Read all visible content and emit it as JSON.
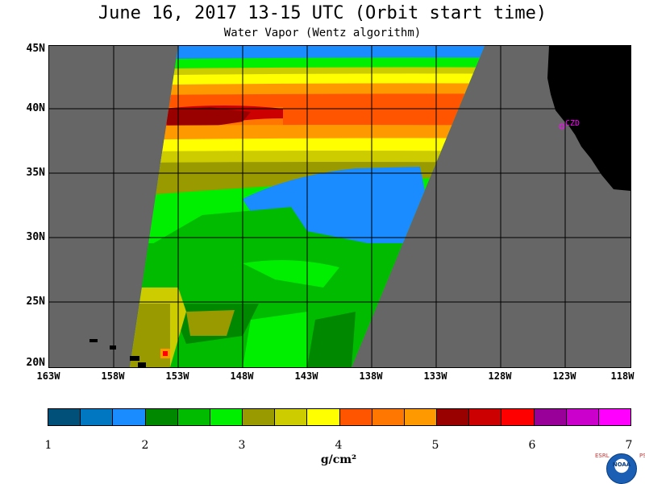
{
  "title": "June 16, 2017  13-15 UTC  (Orbit start time)",
  "subtitle": "Water Vapor (Wentz algorithm)",
  "map": {
    "lon_labels": [
      "163W",
      "158W",
      "153W",
      "148W",
      "143W",
      "138W",
      "133W",
      "128W",
      "123W",
      "118W"
    ],
    "lat_labels": [
      "45N",
      "40N",
      "35N",
      "30N",
      "25N",
      "20N"
    ],
    "station_label": "CZD",
    "station_color": "#ff00ff",
    "no_data_color": "#666666",
    "land_color": "#000000"
  },
  "colorbar": {
    "colors": [
      "#00507a",
      "#0077c0",
      "#1a8cff",
      "#008800",
      "#00bb00",
      "#00ee00",
      "#999900",
      "#cccc00",
      "#ffff00",
      "#ff5500",
      "#ff7700",
      "#ff9900",
      "#990000",
      "#cc0000",
      "#ff0000",
      "#990099",
      "#cc00cc",
      "#ff00ff"
    ],
    "tick_labels": [
      "1",
      "2",
      "3",
      "4",
      "5",
      "6",
      "7"
    ],
    "unit": "g/cm²"
  },
  "logo": {
    "left_text": "ESRL",
    "right_text": "PSD",
    "disk_text": "NOAA"
  }
}
